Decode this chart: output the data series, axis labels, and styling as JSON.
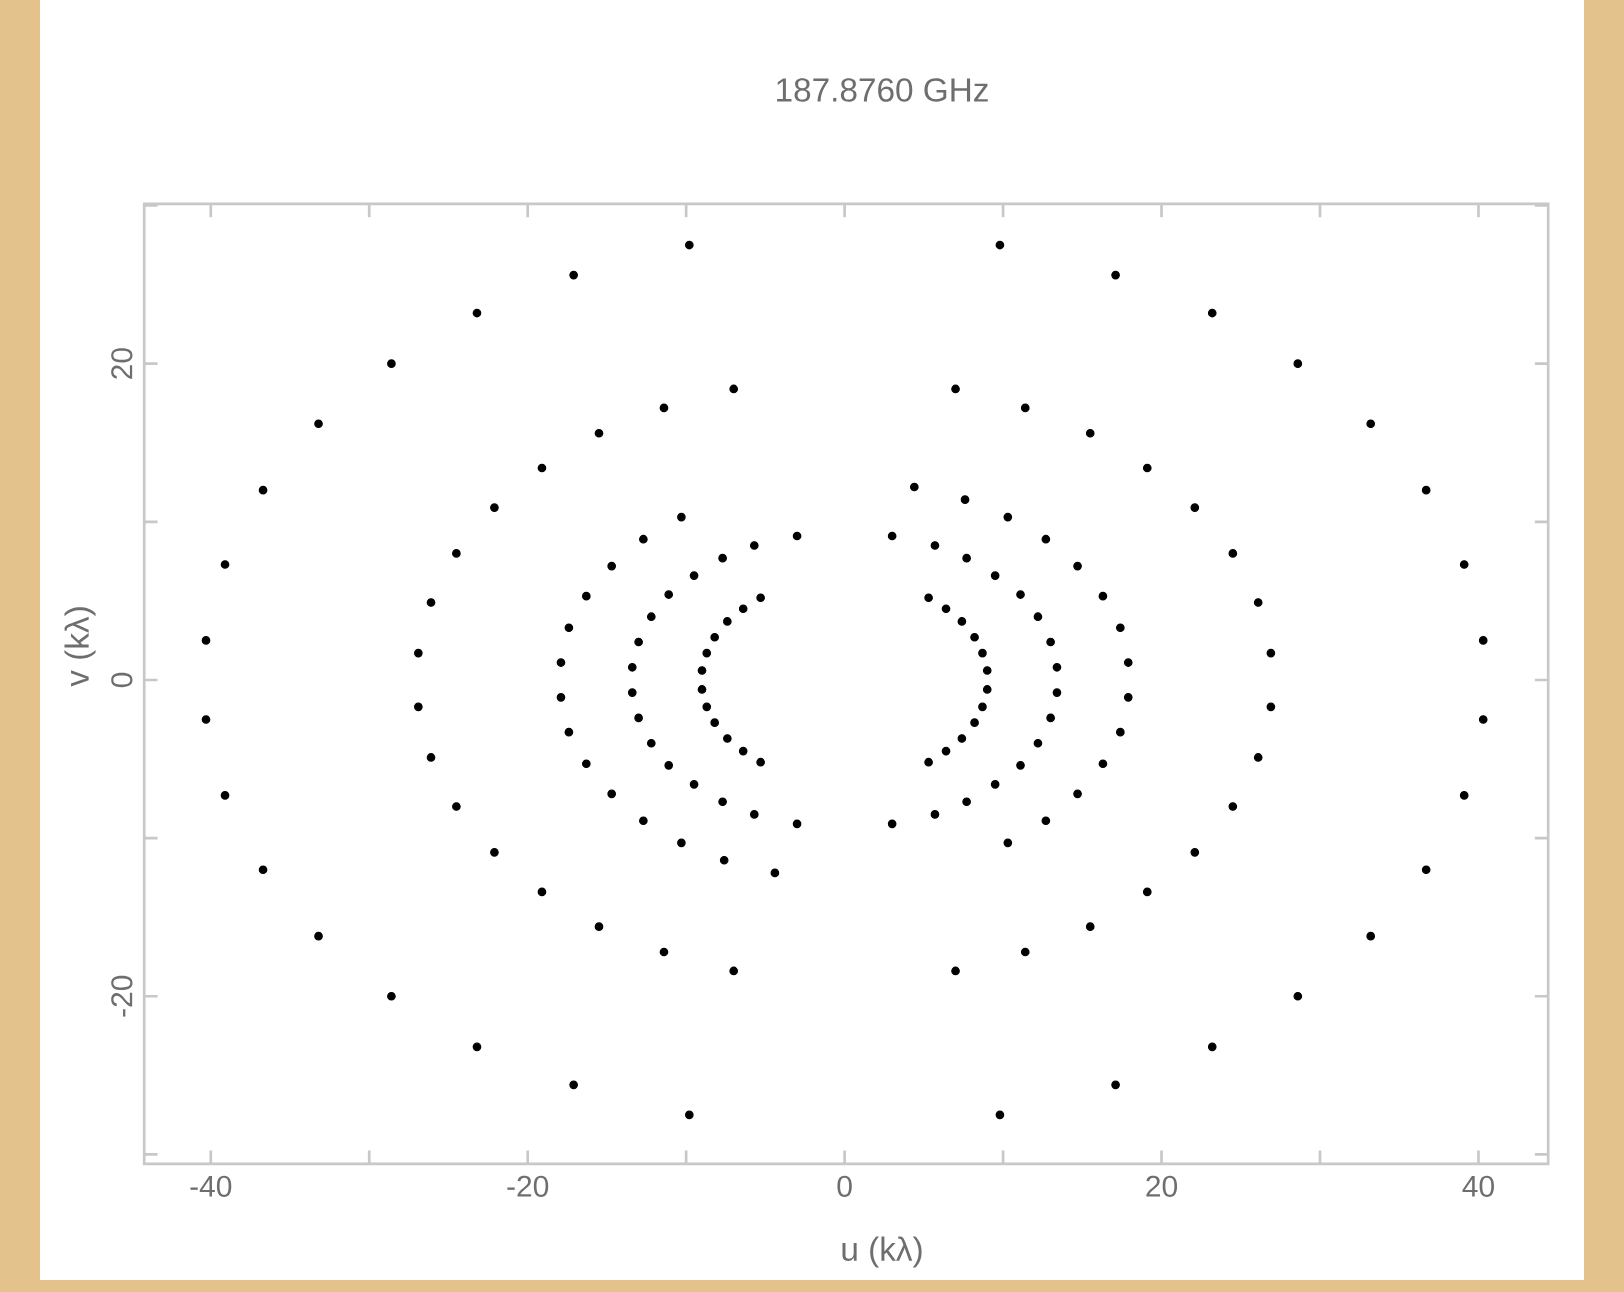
{
  "chart_data": {
    "type": "scatter",
    "title": "187.8760 GHz",
    "xlabel": "u (kλ)",
    "ylabel": "v (kλ)",
    "color": "#000000",
    "marker": "circle",
    "xlim": [
      -44.2,
      44.4
    ],
    "ylim": [
      -30.6,
      30.1
    ],
    "xticks": [
      -40,
      {
        "value": -30,
        "label": null
      },
      -20,
      {
        "value": -10,
        "label": null
      },
      0,
      {
        "value": 10,
        "label": null
      },
      20,
      {
        "value": 30,
        "label": null
      },
      40
    ],
    "yticks": [
      {
        "value": -30,
        "label": null
      },
      -20,
      {
        "value": -10,
        "label": null
      },
      0,
      {
        "value": 10,
        "label": null
      },
      20,
      {
        "value": 30,
        "label": null
      }
    ],
    "x": [
      9.8,
      17.1,
      23.2,
      28.6,
      33.2,
      36.7,
      39.1,
      40.3,
      40.3,
      39.1,
      36.7,
      33.2,
      28.6,
      23.2,
      17.1,
      9.8,
      -9.8,
      -17.1,
      -23.2,
      -28.6,
      -33.2,
      -36.7,
      -39.1,
      -40.3,
      -40.3,
      -39.1,
      -36.7,
      -33.2,
      -28.6,
      -23.2,
      -17.1,
      -9.8,
      7.0,
      11.4,
      15.5,
      19.1,
      22.1,
      24.5,
      26.1,
      26.9,
      26.9,
      26.1,
      24.5,
      22.1,
      19.1,
      15.5,
      11.4,
      7.0,
      -7.0,
      -11.4,
      -15.5,
      -19.1,
      -22.1,
      -24.5,
      -26.1,
      -26.9,
      -26.9,
      -26.1,
      -24.5,
      -22.1,
      -19.1,
      -15.5,
      -11.4,
      -7.0,
      4.4,
      7.6,
      10.3,
      12.7,
      14.7,
      16.3,
      17.4,
      17.9,
      17.9,
      17.4,
      16.3,
      14.7,
      12.7,
      10.3,
      -4.4,
      -7.6,
      -10.3,
      -12.7,
      -14.7,
      -16.3,
      -17.4,
      -17.9,
      -17.9,
      -17.4,
      -16.3,
      -14.7,
      -12.7,
      -10.3,
      3.0,
      5.7,
      7.7,
      9.5,
      11.1,
      12.2,
      13.0,
      13.4,
      13.4,
      13.0,
      12.2,
      11.1,
      9.5,
      7.7,
      5.7,
      3.0,
      -3.0,
      -5.7,
      -7.7,
      -9.5,
      -11.1,
      -12.2,
      -13.0,
      -13.4,
      -13.4,
      -13.0,
      -12.2,
      -11.1,
      -9.5,
      -7.7,
      -5.7,
      -3.0,
      5.3,
      6.4,
      7.4,
      8.2,
      8.7,
      9.0,
      9.0,
      8.7,
      8.2,
      7.4,
      6.4,
      5.3,
      -5.3,
      -6.4,
      -7.4,
      -8.2,
      -8.7,
      -9.0,
      -9.0,
      -8.7,
      -8.2,
      -7.4,
      -6.4,
      -5.3
    ],
    "values": [
      27.5,
      25.6,
      23.2,
      20.0,
      16.2,
      12.0,
      7.3,
      2.5,
      -2.5,
      -7.3,
      -12.0,
      -16.2,
      -20.0,
      -23.2,
      -25.6,
      -27.5,
      27.5,
      25.6,
      23.2,
      20.0,
      16.2,
      12.0,
      7.3,
      2.5,
      -2.5,
      -7.3,
      -12.0,
      -16.2,
      -20.0,
      -23.2,
      -25.6,
      -27.5,
      18.4,
      17.2,
      15.6,
      13.4,
      10.9,
      8.0,
      4.9,
      1.7,
      -1.7,
      -4.9,
      -8.0,
      -10.9,
      -13.4,
      -15.6,
      -17.2,
      -18.4,
      18.4,
      17.2,
      15.6,
      13.4,
      10.9,
      8.0,
      4.9,
      1.7,
      -1.7,
      -4.9,
      -8.0,
      -10.9,
      -13.4,
      -15.6,
      -17.2,
      -18.4,
      12.2,
      11.4,
      10.3,
      8.9,
      7.2,
      5.3,
      3.3,
      1.1,
      -1.1,
      -3.3,
      -5.3,
      -7.2,
      -8.9,
      -10.3,
      -12.2,
      -11.4,
      -10.3,
      -8.9,
      -7.2,
      -5.3,
      -3.3,
      -1.1,
      1.1,
      3.3,
      5.3,
      7.2,
      8.9,
      10.3,
      9.1,
      8.5,
      7.7,
      6.6,
      5.4,
      4.0,
      2.4,
      0.8,
      -0.8,
      -2.4,
      -4.0,
      -5.4,
      -6.6,
      -7.7,
      -8.5,
      -9.1,
      9.1,
      8.5,
      7.7,
      6.6,
      5.4,
      4.0,
      2.4,
      0.8,
      -0.8,
      -2.4,
      -4.0,
      -5.4,
      -6.6,
      -7.7,
      -8.5,
      -9.1,
      5.2,
      4.5,
      3.7,
      2.7,
      1.7,
      0.6,
      -0.6,
      -1.7,
      -2.7,
      -3.7,
      -4.5,
      -5.2,
      5.2,
      4.5,
      3.7,
      2.7,
      1.7,
      0.6,
      -0.6,
      -1.7,
      -2.7,
      -3.7,
      -4.5,
      -5.2
    ]
  }
}
